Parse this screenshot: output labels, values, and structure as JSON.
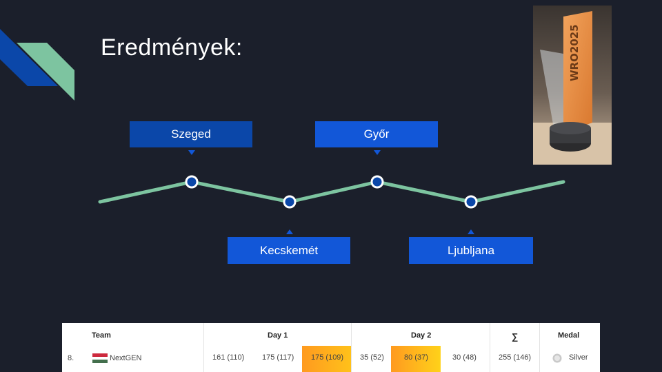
{
  "title": "Eredmények:",
  "timeline": {
    "cities": [
      {
        "label": "Szeged"
      },
      {
        "label": "Kecskemét"
      },
      {
        "label": "Győr"
      },
      {
        "label": "Ljubljana"
      }
    ]
  },
  "photo": {
    "trophy_text": "WRO2025"
  },
  "results": {
    "headers": {
      "team": "Team",
      "day1": "Day 1",
      "day2": "Day 2",
      "sum": "∑",
      "medal": "Medal"
    },
    "row": {
      "rank": "8.",
      "team": "NextGEN",
      "day1": [
        "161 (110)",
        "175 (117)",
        "175 (109)"
      ],
      "day2": [
        "35 (52)",
        "80 (37)",
        "30 (48)"
      ],
      "sum": "255 (146)",
      "medal": "Silver"
    }
  },
  "colors": {
    "background": "#1b1f2b",
    "line": "#7dc4a0",
    "marker": "#0b47a9",
    "highlight": "#ff9a1f"
  }
}
